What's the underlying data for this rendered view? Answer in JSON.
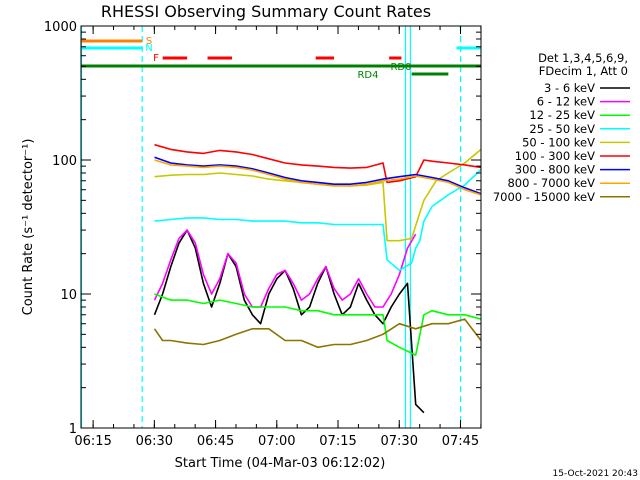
{
  "chart_data": {
    "type": "line",
    "title": "RHESSI Observing Summary Count Rates",
    "xlabel": "Start Time (04-Mar-03 06:12:02)",
    "ylabel": "Count Rate (s⁻¹ detector⁻¹)",
    "x_unit": "minutes after 06:12:02 UT",
    "xlim": [
      0,
      98
    ],
    "x_ticks": [
      {
        "value": 2.97,
        "label": "06:15"
      },
      {
        "value": 17.97,
        "label": "06:30"
      },
      {
        "value": 32.97,
        "label": "06:45"
      },
      {
        "value": 47.97,
        "label": "07:00"
      },
      {
        "value": 62.97,
        "label": "07:15"
      },
      {
        "value": 77.97,
        "label": "07:30"
      },
      {
        "value": 92.97,
        "label": "07:45"
      }
    ],
    "y_scale": "log",
    "ylim": [
      1,
      1000
    ],
    "y_ticks": [
      {
        "value": 1,
        "label": "1"
      },
      {
        "value": 10,
        "label": "10"
      },
      {
        "value": 100,
        "label": "100"
      },
      {
        "value": 1000,
        "label": "1000"
      }
    ],
    "grid": false,
    "legend_position": "right",
    "legend_header": [
      "Det 1,3,4,5,6,9,",
      "FDecim 1, Att 0"
    ],
    "series": [
      {
        "name": "3 - 6 keV",
        "color": "#000000",
        "x": [
          18,
          20,
          22,
          24,
          26,
          28,
          30,
          32,
          34,
          36,
          38,
          40,
          42,
          44,
          46,
          48,
          50,
          52,
          54,
          56,
          58,
          60,
          62,
          64,
          66,
          68,
          70,
          72,
          74,
          76,
          78,
          80,
          82,
          84
        ],
        "y": [
          7,
          10,
          16,
          24,
          30,
          22,
          12,
          8,
          12,
          20,
          16,
          9,
          7,
          6,
          10,
          13,
          15,
          11,
          7,
          8,
          12,
          16,
          10,
          7,
          8,
          12,
          9,
          7,
          6,
          8,
          10,
          12,
          1.5,
          1.3
        ]
      },
      {
        "name": "6 - 12 keV",
        "color": "#ff00ff",
        "x": [
          18,
          20,
          22,
          24,
          26,
          28,
          30,
          32,
          34,
          36,
          38,
          40,
          42,
          44,
          46,
          48,
          50,
          52,
          54,
          56,
          58,
          60,
          62,
          64,
          66,
          68,
          70,
          72,
          74,
          76,
          78,
          80,
          82
        ],
        "y": [
          9,
          12,
          18,
          26,
          30,
          24,
          14,
          10,
          13,
          20,
          17,
          10,
          8,
          8,
          11,
          14,
          15,
          12,
          9,
          10,
          13,
          16,
          11,
          9,
          10,
          13,
          10,
          8,
          8,
          10,
          14,
          22,
          28
        ]
      },
      {
        "name": "12 - 25 keV",
        "color": "#00ff00",
        "x": [
          18,
          22,
          26,
          30,
          34,
          38,
          42,
          46,
          50,
          54,
          58,
          62,
          66,
          70,
          74,
          75,
          78,
          82,
          84,
          86,
          90,
          94,
          98
        ],
        "y": [
          10,
          9,
          9,
          8.5,
          9,
          8.5,
          8,
          8,
          8,
          7.5,
          7.5,
          7,
          7,
          7,
          7,
          4.5,
          4,
          3.5,
          7,
          7.5,
          7,
          7,
          6.5
        ]
      },
      {
        "name": "25 - 50 keV",
        "color": "#00ffff",
        "x": [
          18,
          22,
          26,
          30,
          34,
          38,
          42,
          46,
          50,
          54,
          58,
          62,
          66,
          70,
          74,
          75,
          78,
          81,
          82,
          83,
          84,
          86,
          90,
          94,
          98
        ],
        "y": [
          35,
          36,
          37,
          37,
          36,
          36,
          35,
          35,
          35,
          34,
          34,
          33,
          33,
          33,
          33,
          18,
          15,
          17,
          22,
          25,
          35,
          45,
          55,
          65,
          85
        ]
      },
      {
        "name": "50 - 100 keV",
        "color": "#c8c800",
        "x": [
          18,
          22,
          26,
          30,
          34,
          38,
          42,
          46,
          50,
          54,
          58,
          62,
          66,
          70,
          74,
          75,
          78,
          81,
          84,
          87,
          90,
          94,
          98
        ],
        "y": [
          75,
          77,
          78,
          78,
          80,
          78,
          76,
          72,
          70,
          68,
          66,
          65,
          64,
          65,
          68,
          25,
          25,
          26,
          50,
          70,
          80,
          95,
          120
        ]
      },
      {
        "name": "100 - 300 keV",
        "color": "#ff0000",
        "x": [
          18,
          22,
          26,
          30,
          34,
          38,
          42,
          46,
          50,
          54,
          58,
          62,
          66,
          70,
          74,
          75,
          78,
          82,
          84,
          86,
          90,
          94,
          98
        ],
        "y": [
          130,
          120,
          115,
          112,
          118,
          115,
          110,
          102,
          95,
          92,
          90,
          88,
          87,
          88,
          95,
          68,
          70,
          75,
          100,
          98,
          95,
          92,
          88
        ]
      },
      {
        "name": "300 - 800 keV",
        "color": "#0000ff",
        "x": [
          18,
          22,
          26,
          30,
          34,
          38,
          42,
          46,
          50,
          54,
          58,
          62,
          66,
          70,
          74,
          78,
          82,
          86,
          90,
          94,
          98
        ],
        "y": [
          105,
          95,
          92,
          90,
          92,
          90,
          86,
          80,
          74,
          70,
          68,
          66,
          66,
          68,
          72,
          75,
          78,
          74,
          70,
          62,
          56
        ]
      },
      {
        "name": "800 - 7000 keV",
        "color": "#ffa500",
        "x": [
          18,
          22,
          26,
          30,
          34,
          38,
          42,
          46,
          50,
          54,
          58,
          62,
          66,
          70,
          74,
          78,
          82,
          86,
          90,
          94,
          98
        ],
        "y": [
          100,
          92,
          90,
          88,
          90,
          88,
          84,
          78,
          72,
          68,
          66,
          64,
          64,
          66,
          70,
          72,
          76,
          72,
          68,
          60,
          55
        ]
      },
      {
        "name": "7000 - 15000 keV",
        "color": "#8b7500",
        "x": [
          18,
          20,
          22,
          26,
          30,
          34,
          38,
          42,
          46,
          50,
          54,
          58,
          62,
          66,
          70,
          74,
          78,
          82,
          86,
          90,
          94,
          98
        ],
        "y": [
          5.5,
          4.5,
          4.5,
          4.3,
          4.2,
          4.5,
          5,
          5.5,
          5.5,
          4.5,
          4.5,
          4,
          4.2,
          4.2,
          4.5,
          5,
          6,
          5.5,
          6,
          6,
          6.5,
          4.5
        ]
      }
    ],
    "state_bars": [
      {
        "label": "S",
        "color": "#ff8000",
        "segments": [
          [
            0,
            15
          ]
        ]
      },
      {
        "label": "N",
        "color": "#00ffff",
        "segments": [
          [
            0,
            15
          ],
          [
            92,
            98
          ]
        ]
      },
      {
        "label": "F",
        "color": "#ff0000",
        "segments": [
          [
            20,
            26
          ],
          [
            31,
            37
          ],
          [
            57.5,
            62
          ],
          [
            75.5,
            78.5
          ]
        ]
      },
      {
        "label": "RD0",
        "color": "#008000",
        "segments": [
          [
            0,
            98
          ]
        ]
      },
      {
        "label": "RD4",
        "color": "#008000",
        "segments": [
          [
            81,
            90
          ]
        ]
      }
    ],
    "vertical_markers": [
      {
        "x": 0,
        "color": "#00ffff",
        "style": "solid"
      },
      {
        "x": 15,
        "color": "#00ffff",
        "style": "dashed"
      },
      {
        "x": 79.5,
        "color": "#00ffff",
        "style": "solid"
      },
      {
        "x": 80.7,
        "color": "#00ffff",
        "style": "solid"
      },
      {
        "x": 93,
        "color": "#00ffff",
        "style": "dashed"
      }
    ],
    "footer": "15-Oct-2021 20:43"
  }
}
